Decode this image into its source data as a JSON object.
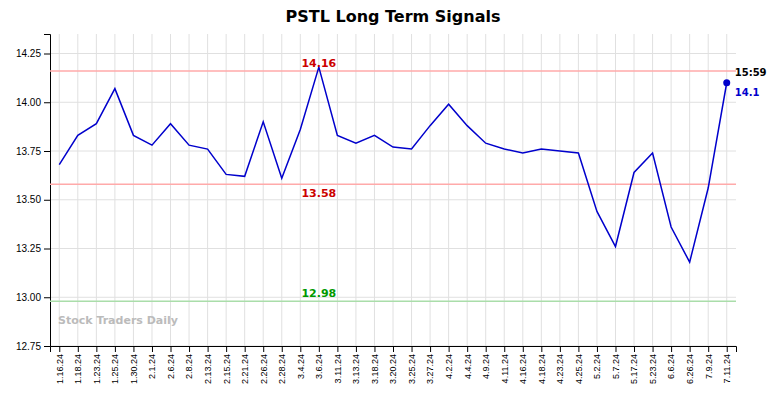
{
  "chart_data": {
    "type": "line",
    "title": "PSTL Long Term Signals",
    "watermark": "Stock Traders Daily",
    "color": "#0000cc",
    "grid": true,
    "categories": [
      "1.16.24",
      "1.18.24",
      "1.23.24",
      "1.25.24",
      "1.30.24",
      "2.1.24",
      "2.6.24",
      "2.8.24",
      "2.13.24",
      "2.15.24",
      "2.21.24",
      "2.26.24",
      "2.28.24",
      "3.4.24",
      "3.6.24",
      "3.11.24",
      "3.13.24",
      "3.18.24",
      "3.20.24",
      "3.25.24",
      "3.27.24",
      "4.2.24",
      "4.4.24",
      "4.9.24",
      "4.11.24",
      "4.16.24",
      "4.18.24",
      "4.23.24",
      "4.25.24",
      "5.2.24",
      "5.7.24",
      "5.17.24",
      "5.23.24",
      "6.6.24",
      "6.26.24",
      "7.9.24",
      "7.11.24"
    ],
    "values": [
      13.68,
      13.83,
      13.89,
      14.07,
      13.83,
      13.78,
      13.89,
      13.78,
      13.76,
      13.63,
      13.62,
      13.9,
      13.61,
      13.86,
      14.18,
      13.83,
      13.79,
      13.83,
      13.77,
      13.76,
      13.88,
      13.99,
      13.88,
      13.79,
      13.76,
      13.74,
      13.76,
      13.75,
      13.74,
      13.44,
      13.26,
      13.64,
      13.74,
      13.36,
      13.18,
      13.56,
      14.1
    ],
    "ylim": [
      12.75,
      14.35
    ],
    "yticks": [
      12.75,
      {
        "value": 13.0,
        "label": "13.00"
      },
      13.25,
      {
        "value": 13.5,
        "label": "13.50"
      },
      13.75,
      {
        "value": 14.0,
        "label": "14.00"
      },
      14.25
    ],
    "hlines": [
      {
        "value": 14.16,
        "color": "#ffaaaa",
        "label_color": "#cc0000"
      },
      {
        "value": 13.58,
        "color": "#ffaaaa",
        "label_color": "#cc0000"
      },
      {
        "value": 12.98,
        "color": "#aaddaa",
        "label_color": "#009900"
      }
    ],
    "annotations": [
      {
        "text": "15:59"
      },
      {
        "text": "14.1",
        "color": "#0000cc"
      }
    ]
  }
}
